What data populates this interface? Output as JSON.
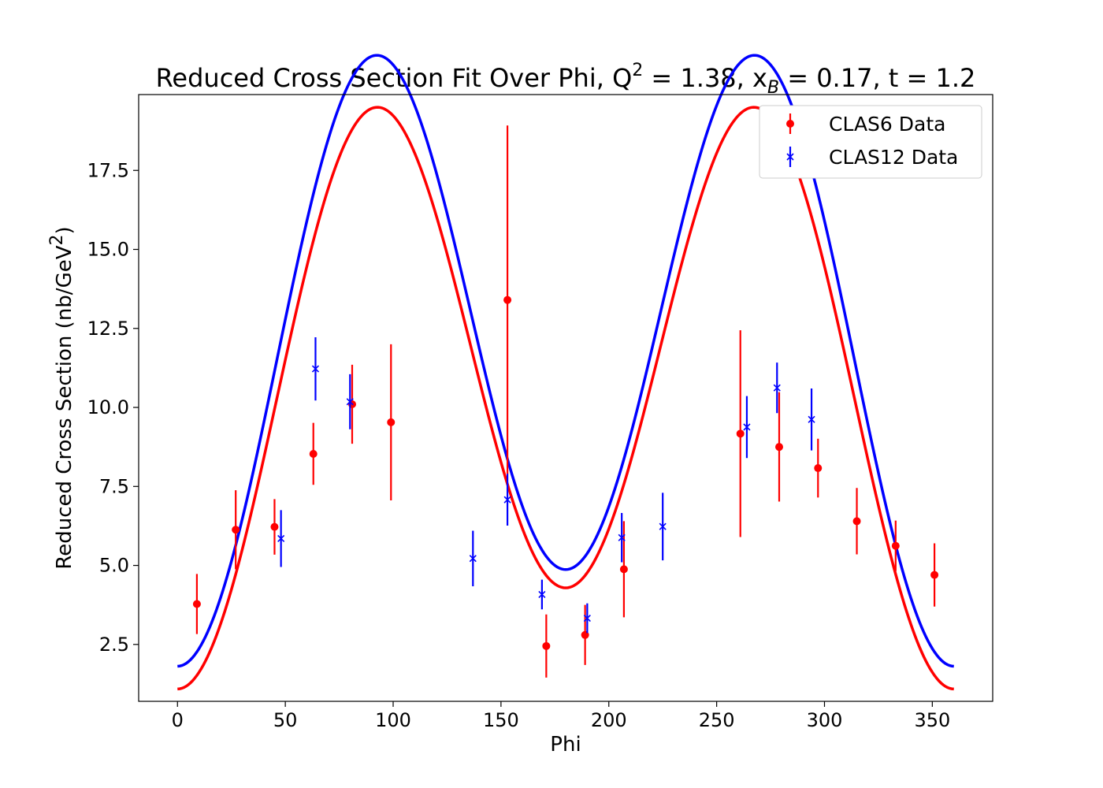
{
  "chart_data": {
    "type": "scatter",
    "title": {
      "prefix": "Reduced Cross Section Fit Over Phi, Q",
      "q2_sup": "2",
      "q2_value": " = 1.38, x",
      "xb_sub": "B",
      "rest": " = 0.17, t = 1.2"
    },
    "xlabel": "Phi",
    "ylabel": {
      "main": "Reduced Cross Section (nb/GeV",
      "sup": "2",
      "close": ")"
    },
    "xlim": [
      -18,
      378
    ],
    "ylim": [
      0.7,
      19.9
    ],
    "xticks": [
      0,
      50,
      100,
      150,
      200,
      250,
      300,
      350
    ],
    "xtick_labels": [
      "0",
      "50",
      "100",
      "150",
      "200",
      "250",
      "300",
      "350"
    ],
    "yticks": [
      2.5,
      5.0,
      7.5,
      10.0,
      12.5,
      15.0,
      17.5
    ],
    "ytick_labels": [
      "2.5",
      "5.0",
      "7.5",
      "10.0",
      "12.5",
      "15.0",
      "17.5"
    ],
    "grid": false,
    "legend_position": "top-right",
    "series": [
      {
        "name": "CLAS6 Data",
        "color": "#ff0000",
        "marker": "circle",
        "points": [
          {
            "x": 9,
            "y": 3.78,
            "err": 0.95
          },
          {
            "x": 27,
            "y": 6.13,
            "err": 1.25
          },
          {
            "x": 45,
            "y": 6.22,
            "err": 0.88
          },
          {
            "x": 63,
            "y": 8.53,
            "err": 0.98
          },
          {
            "x": 81,
            "y": 10.1,
            "err": 1.25
          },
          {
            "x": 99,
            "y": 9.53,
            "err": 2.47
          },
          {
            "x": 153,
            "y": 13.4,
            "err": 5.52
          },
          {
            "x": 171,
            "y": 2.45,
            "err": 1.0
          },
          {
            "x": 189,
            "y": 2.8,
            "err": 0.95
          },
          {
            "x": 207,
            "y": 4.88,
            "err": 1.52
          },
          {
            "x": 261,
            "y": 9.17,
            "err": 3.27
          },
          {
            "x": 279,
            "y": 8.75,
            "err": 1.73
          },
          {
            "x": 297,
            "y": 8.08,
            "err": 0.93
          },
          {
            "x": 315,
            "y": 6.4,
            "err": 1.05
          },
          {
            "x": 333,
            "y": 5.62,
            "err": 0.8
          },
          {
            "x": 351,
            "y": 4.7,
            "err": 1.0
          }
        ]
      },
      {
        "name": "CLAS12 Data",
        "color": "#0000ff",
        "marker": "x",
        "points": [
          {
            "x": 48,
            "y": 5.85,
            "err": 0.9
          },
          {
            "x": 64,
            "y": 11.22,
            "err": 1.0
          },
          {
            "x": 80,
            "y": 10.18,
            "err": 0.87
          },
          {
            "x": 137,
            "y": 5.22,
            "err": 0.88
          },
          {
            "x": 153,
            "y": 7.08,
            "err": 0.82
          },
          {
            "x": 169,
            "y": 4.08,
            "err": 0.47
          },
          {
            "x": 190,
            "y": 3.33,
            "err": 0.47
          },
          {
            "x": 206,
            "y": 5.88,
            "err": 0.78
          },
          {
            "x": 225,
            "y": 6.23,
            "err": 1.07
          },
          {
            "x": 264,
            "y": 9.38,
            "err": 0.98
          },
          {
            "x": 278,
            "y": 10.62,
            "err": 0.8
          },
          {
            "x": 294,
            "y": 9.62,
            "err": 0.98
          }
        ]
      }
    ],
    "fits": [
      {
        "series": "CLAS6 Data",
        "color": "#ff0000",
        "A": 5.94,
        "B": -1.6,
        "C": -3.25,
        "S": 10.27
      },
      {
        "series": "CLAS12 Data",
        "color": "#0000ff",
        "A": 6.92,
        "B": -1.53,
        "C": -3.58,
        "S": 10.61
      }
    ]
  }
}
